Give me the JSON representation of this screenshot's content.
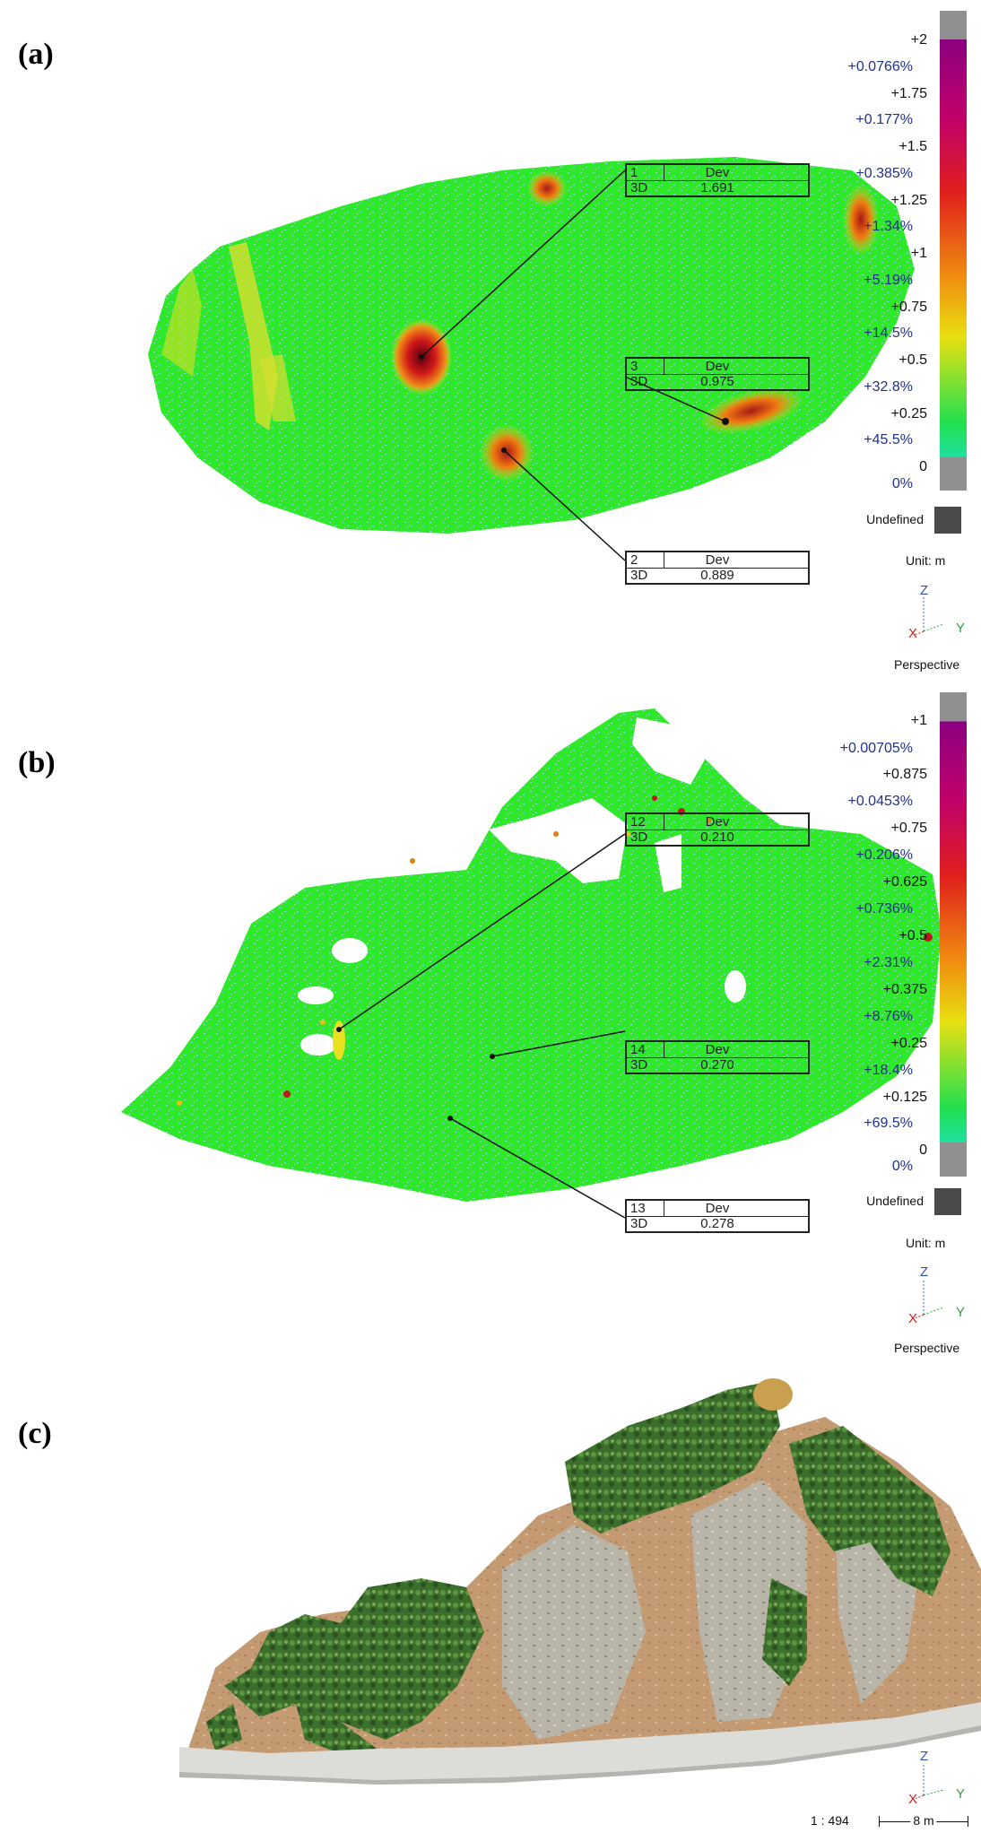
{
  "panels": [
    {
      "label": "(a)",
      "tags": [
        {
          "id": "1",
          "col": "Dev",
          "mode": "3D",
          "value": "1.691"
        },
        {
          "id": "3",
          "col": "Dev",
          "mode": "3D",
          "value": "0.975"
        },
        {
          "id": "2",
          "col": "Dev",
          "mode": "3D",
          "value": "0.889"
        }
      ],
      "legend": {
        "values": [
          "+2",
          "+1.75",
          "+1.5",
          "+1.25",
          "+1",
          "+0.75",
          "+0.5",
          "+0.25",
          "0"
        ],
        "percents": [
          "+0.0766%",
          "+0.177%",
          "+0.385%",
          "+1.34%",
          "+5.19%",
          "+14.5%",
          "+32.8%",
          "+45.5%",
          "0%"
        ],
        "undefined_label": "Undefined",
        "unit": "Unit: m"
      },
      "axis": {
        "z": "Z",
        "x": "X",
        "y": "Y"
      },
      "view": "Perspective"
    },
    {
      "label": "(b)",
      "tags": [
        {
          "id": "12",
          "col": "Dev",
          "mode": "3D",
          "value": "0.210"
        },
        {
          "id": "14",
          "col": "Dev",
          "mode": "3D",
          "value": "0.270"
        },
        {
          "id": "13",
          "col": "Dev",
          "mode": "3D",
          "value": "0.278"
        }
      ],
      "legend": {
        "values": [
          "+1",
          "+0.875",
          "+0.75",
          "+0.625",
          "+0.5",
          "+0.375",
          "+0.25",
          "+0.125",
          "0"
        ],
        "percents": [
          "+0.00705%",
          "+0.0453%",
          "+0.206%",
          "+0.736%",
          "+2.31%",
          "+8.76%",
          "+18.4%",
          "+69.5%",
          "0%"
        ],
        "undefined_label": "Undefined",
        "unit": "Unit: m"
      },
      "axis": {
        "z": "Z",
        "x": "X",
        "y": "Y"
      },
      "view": "Perspective"
    },
    {
      "label": "(c)",
      "axis": {
        "z": "Z",
        "x": "X",
        "y": "Y"
      },
      "scale_ratio": "1 : 494",
      "scale_bar": "8 m"
    }
  ],
  "colors": {
    "cloud_green": "#2ee82a",
    "scale_top": "#8b0080",
    "scale_mid_red": "#e0201c",
    "scale_orange": "#f08a10",
    "scale_yellow": "#e8e010",
    "scale_green": "#20e050",
    "percent_text": "#22308a",
    "undefined_swatch": "#4a4a4a"
  }
}
